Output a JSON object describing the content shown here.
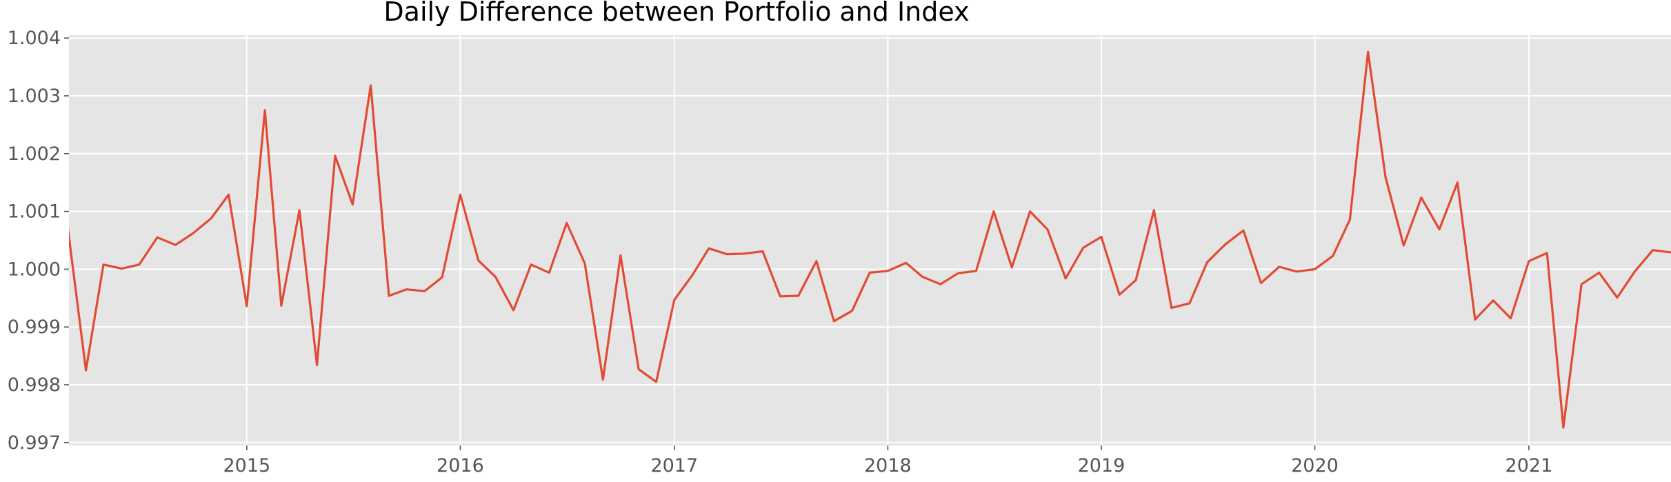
{
  "chart_data": {
    "type": "line",
    "title": "Daily Difference between Portfolio and Index",
    "xlabel": "",
    "ylabel": "",
    "x_tick_labels": [
      "2015",
      "2016",
      "2017",
      "2018",
      "2019",
      "2020",
      "2021"
    ],
    "y_tick_labels": [
      "0.997",
      "0.998",
      "0.999",
      "1.000",
      "1.001",
      "1.002",
      "1.003",
      "1.004"
    ],
    "xlim": [
      "2014-03-03",
      "2021-09-01"
    ],
    "ylim": [
      0.99695,
      1.00405
    ],
    "grid": true,
    "background": "#e5e5e5",
    "line_color": "#e24a33",
    "series": [
      {
        "x": [
          "2014-03-01",
          "2014-04-01",
          "2014-05-01",
          "2014-06-01",
          "2014-07-01",
          "2014-08-01",
          "2014-09-01",
          "2014-10-01",
          "2014-11-01",
          "2014-12-01",
          "2015-01-01",
          "2015-02-01",
          "2015-03-01",
          "2015-04-01",
          "2015-05-01",
          "2015-06-01",
          "2015-07-01",
          "2015-08-01",
          "2015-09-01",
          "2015-10-01",
          "2015-11-01",
          "2015-12-01",
          "2016-01-01",
          "2016-02-01",
          "2016-03-01",
          "2016-04-01",
          "2016-05-01",
          "2016-06-01",
          "2016-07-01",
          "2016-08-01",
          "2016-09-01",
          "2016-10-01",
          "2016-11-01",
          "2016-12-01",
          "2017-01-01",
          "2017-02-01",
          "2017-03-01",
          "2017-04-01",
          "2017-05-01",
          "2017-06-01",
          "2017-07-01",
          "2017-08-01",
          "2017-09-01",
          "2017-10-01",
          "2017-11-01",
          "2017-12-01",
          "2018-01-01",
          "2018-02-01",
          "2018-03-01",
          "2018-04-01",
          "2018-05-01",
          "2018-06-01",
          "2018-07-01",
          "2018-08-01",
          "2018-09-01",
          "2018-10-01",
          "2018-11-01",
          "2018-12-01",
          "2019-01-01",
          "2019-02-01",
          "2019-03-01",
          "2019-04-01",
          "2019-05-01",
          "2019-06-01",
          "2019-07-01",
          "2019-08-01",
          "2019-09-01",
          "2019-10-01",
          "2019-11-01",
          "2019-12-01",
          "2020-01-01",
          "2020-02-01",
          "2020-03-01",
          "2020-04-01",
          "2020-05-01",
          "2020-06-01",
          "2020-07-01",
          "2020-08-01",
          "2020-09-01",
          "2020-10-01",
          "2020-11-01",
          "2020-12-01",
          "2021-01-01",
          "2021-02-01",
          "2021-03-01",
          "2021-04-01",
          "2021-05-01",
          "2021-06-01",
          "2021-07-01",
          "2021-08-01",
          "2021-09-01"
        ],
        "values": [
          1.00072,
          0.99825,
          1.00008,
          1.00001,
          1.00008,
          1.00055,
          1.00042,
          1.00062,
          1.00088,
          1.00129,
          0.99936,
          1.00275,
          0.99937,
          1.00102,
          0.99834,
          1.00196,
          1.00112,
          1.00318,
          0.99954,
          0.99965,
          0.99962,
          0.99986,
          1.00129,
          1.00015,
          0.99987,
          0.99929,
          1.00008,
          0.99994,
          1.0008,
          1.0001,
          0.99809,
          1.00024,
          0.99827,
          0.99805,
          0.99947,
          0.9999,
          1.00036,
          1.00026,
          1.00027,
          1.00031,
          0.99953,
          0.99954,
          1.00014,
          0.9991,
          0.99928,
          0.99994,
          0.99997,
          1.00011,
          0.99987,
          0.99974,
          0.99993,
          0.99997,
          1.001,
          1.00003,
          1.001,
          1.00069,
          0.99984,
          1.00037,
          1.00056,
          0.99956,
          0.99981,
          1.00102,
          0.99933,
          0.99941,
          1.00012,
          1.00043,
          1.00067,
          0.99976,
          1.00004,
          0.99996,
          1.0,
          1.00023,
          1.00086,
          1.00376,
          1.00159,
          1.00041,
          1.00124,
          1.00069,
          1.0015,
          0.99913,
          0.99946,
          0.99915,
          1.00014,
          1.00028,
          0.99726,
          0.99974,
          0.99994,
          0.99951,
          0.99996,
          1.00033,
          1.00029
        ]
      }
    ]
  }
}
